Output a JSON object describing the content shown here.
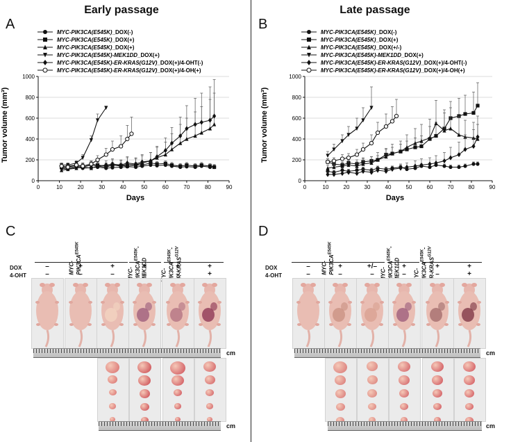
{
  "panels": {
    "left_title": "Early passage",
    "right_title": "Late passage",
    "letters": {
      "a": "A",
      "b": "B",
      "c": "C",
      "d": "D"
    }
  },
  "legend": [
    {
      "gene": "MYC-PIK3CA(E545K)",
      "suffix": "_DOX(-)",
      "marker": "circle-filled"
    },
    {
      "gene": "MYC-PIK3CA(E545K)",
      "suffix": "_DOX(+)",
      "marker": "square-filled"
    },
    {
      "gene": "MYC-PIK3CA(E545K)",
      "suffix": "_DOX(+)",
      "marker": "triangle-up"
    },
    {
      "gene": "MYC-PIK3CA(E545K)-MEK1DD",
      "suffix": "_DOX(+)",
      "marker": "triangle-down"
    },
    {
      "gene": "MYC-PIK3CA(E545K)-ER-KRAS(G12V)",
      "suffix": "_DOX(+)/4-OHT(-)",
      "marker": "diamond-filled"
    },
    {
      "gene": "MYC-PIK3CA(E545K)-ER-KRAS(G12V)",
      "suffix": "_DOX(+)/4-OH(+)",
      "marker": "circle-open"
    }
  ],
  "legend_late": [
    {
      "gene": "MYC-PIK3CA(E545K)",
      "suffix": "_DOX(-)",
      "marker": "circle-filled"
    },
    {
      "gene": "MYC-PIK3CA(E545K)",
      "suffix": "_DOX(+)",
      "marker": "square-filled"
    },
    {
      "gene": "MYC-PIK3CA(E545K)",
      "suffix": "_DOX(+/-)",
      "marker": "triangle-up"
    },
    {
      "gene": "MYC-PIK3CA(E545K)-MEK1DD",
      "suffix": "_DOX(+)",
      "marker": "triangle-down"
    },
    {
      "gene": "MYC-PIK3CA(E545K)-ER-KRAS(G12V)",
      "suffix": "_DOX(+)/4-OHT(-)",
      "marker": "diamond-filled"
    },
    {
      "gene": "MYC-PIK3CA(E545K)-ER-KRAS(G12V)",
      "suffix": "_DOX(+)/4-OH(+)",
      "marker": "circle-open"
    }
  ],
  "chart_data": [
    {
      "type": "line",
      "title": "Early passage",
      "xlabel": "Days",
      "ylabel": "Tumor volume (mm³)",
      "xlim": [
        0,
        90
      ],
      "ylim": [
        0,
        1000
      ],
      "xticks": [
        0,
        10,
        20,
        30,
        40,
        50,
        60,
        70,
        80,
        90
      ],
      "yticks": [
        0,
        200,
        400,
        600,
        800,
        1000
      ],
      "series": [
        {
          "name": "MYC-PIK3CA(E545K)_DOX(-)",
          "marker": "circle-filled",
          "x": [
            11,
            14,
            18,
            21,
            25,
            28,
            32,
            35,
            39,
            42,
            46,
            49,
            53,
            56,
            60,
            63,
            67,
            70,
            74,
            77,
            81,
            83
          ],
          "y": [
            120,
            110,
            130,
            120,
            125,
            130,
            120,
            125,
            130,
            135,
            130,
            140,
            150,
            145,
            150,
            140,
            130,
            135,
            130,
            140,
            130,
            130
          ],
          "err": [
            20,
            20,
            20,
            20,
            20,
            20,
            20,
            20,
            20,
            20,
            20,
            20,
            20,
            20,
            20,
            20,
            20,
            20,
            20,
            20,
            20,
            20
          ]
        },
        {
          "name": "MYC-PIK3CA(E545K)_DOX(+)",
          "marker": "square-filled",
          "x": [
            11,
            14,
            18,
            21,
            25,
            28,
            32,
            35,
            39,
            42,
            46,
            49,
            53,
            56,
            60,
            63,
            67,
            70,
            74,
            77,
            81,
            83
          ],
          "y": [
            130,
            140,
            150,
            140,
            160,
            150,
            140,
            150,
            145,
            140,
            150,
            150,
            170,
            160,
            165,
            150,
            140,
            150,
            140,
            150,
            140,
            130
          ],
          "err": [
            25,
            25,
            25,
            25,
            25,
            25,
            25,
            25,
            25,
            25,
            25,
            25,
            25,
            25,
            25,
            25,
            25,
            25,
            25,
            25,
            25,
            25
          ]
        },
        {
          "name": "MYC-PIK3CA(E545K)_DOX(+)",
          "marker": "triangle-up",
          "x": [
            11,
            14,
            18,
            21,
            25,
            28,
            32,
            35,
            39,
            42,
            46,
            49,
            53,
            56,
            60,
            63,
            67,
            70,
            74,
            77,
            81,
            83
          ],
          "y": [
            100,
            110,
            120,
            130,
            120,
            140,
            130,
            150,
            140,
            160,
            150,
            170,
            190,
            220,
            250,
            300,
            360,
            400,
            430,
            460,
            500,
            540
          ],
          "err": [
            30,
            30,
            30,
            40,
            40,
            40,
            40,
            50,
            50,
            60,
            60,
            70,
            80,
            100,
            120,
            150,
            180,
            200,
            230,
            250,
            280,
            300
          ]
        },
        {
          "name": "MYC-PIK3CA(E545K)-MEK1DD_DOX(+)",
          "marker": "triangle-down",
          "x": [
            11,
            14,
            18,
            21,
            25,
            28,
            32
          ],
          "y": [
            150,
            150,
            170,
            220,
            390,
            580,
            700
          ],
          "err": [
            20,
            20,
            20,
            30,
            40,
            60,
            0
          ]
        },
        {
          "name": "MYC-PIK3CA(E545K)-ER-KRAS(G12V)_DOX(+)/4-OHT(-)",
          "marker": "diamond-filled",
          "x": [
            11,
            14,
            18,
            21,
            25,
            28,
            32,
            35,
            39,
            42,
            46,
            49,
            53,
            56,
            60,
            63,
            67,
            70,
            74,
            77,
            81,
            83
          ],
          "y": [
            130,
            120,
            140,
            130,
            150,
            140,
            150,
            160,
            150,
            170,
            160,
            180,
            190,
            230,
            290,
            360,
            430,
            500,
            540,
            560,
            580,
            620
          ],
          "err": [
            30,
            30,
            30,
            40,
            40,
            40,
            40,
            50,
            50,
            60,
            60,
            70,
            80,
            100,
            120,
            150,
            180,
            220,
            250,
            280,
            320,
            350
          ]
        },
        {
          "name": "MYC-PIK3CA(E545K)-ER-KRAS(G12V)_DOX(+)/4-OH(+)",
          "marker": "circle-open",
          "x": [
            11,
            14,
            18,
            21,
            25,
            28,
            32,
            35,
            39,
            42,
            44
          ],
          "y": [
            140,
            130,
            150,
            140,
            160,
            200,
            250,
            300,
            330,
            400,
            450
          ],
          "err": [
            20,
            20,
            20,
            20,
            30,
            40,
            60,
            80,
            100,
            130,
            160
          ]
        }
      ]
    },
    {
      "type": "line",
      "title": "Late passage",
      "xlabel": "Days",
      "ylabel": "Tumor volume (mm³)",
      "xlim": [
        0,
        90
      ],
      "ylim": [
        0,
        1000
      ],
      "xticks": [
        0,
        10,
        20,
        30,
        40,
        50,
        60,
        70,
        80,
        90
      ],
      "yticks": [
        0,
        200,
        400,
        600,
        800,
        1000
      ],
      "series": [
        {
          "name": "MYC-PIK3CA(E545K)_DOX(-)",
          "marker": "circle-filled",
          "x": [
            11,
            14,
            18,
            21,
            25,
            28,
            32,
            35,
            39,
            42,
            46,
            49,
            53,
            56,
            60,
            63,
            67,
            70,
            74,
            77,
            81,
            83
          ],
          "y": [
            90,
            80,
            100,
            90,
            100,
            110,
            100,
            120,
            110,
            120,
            130,
            110,
            120,
            140,
            130,
            150,
            140,
            130,
            130,
            140,
            160,
            160
          ],
          "err": [
            20,
            20,
            20,
            20,
            20,
            20,
            20,
            20,
            20,
            20,
            20,
            20,
            20,
            20,
            20,
            20,
            20,
            20,
            20,
            20,
            20,
            20
          ]
        },
        {
          "name": "MYC-PIK3CA(E545K)_DOX(+)",
          "marker": "square-filled",
          "x": [
            11,
            14,
            18,
            21,
            25,
            28,
            32,
            35,
            39,
            42,
            46,
            49,
            53,
            56,
            60,
            63,
            67,
            70,
            74,
            77,
            81,
            83
          ],
          "y": [
            180,
            160,
            150,
            170,
            160,
            180,
            190,
            200,
            250,
            260,
            280,
            300,
            320,
            330,
            400,
            430,
            500,
            600,
            620,
            640,
            650,
            720
          ],
          "err": [
            30,
            30,
            30,
            30,
            40,
            40,
            40,
            40,
            50,
            60,
            70,
            80,
            90,
            100,
            120,
            130,
            150,
            160,
            170,
            180,
            200,
            220
          ]
        },
        {
          "name": "MYC-PIK3CA(E545K)_DOX(+/-)",
          "marker": "triangle-up",
          "x": [
            11,
            14,
            18,
            21,
            25,
            28,
            32,
            35,
            39,
            42,
            46,
            49,
            53,
            56,
            60,
            63,
            67,
            70,
            74,
            77,
            81,
            83
          ],
          "y": [
            120,
            130,
            140,
            150,
            140,
            160,
            170,
            200,
            230,
            260,
            280,
            320,
            360,
            380,
            410,
            550,
            480,
            500,
            440,
            420,
            410,
            400
          ],
          "err": [
            30,
            30,
            30,
            40,
            40,
            50,
            60,
            70,
            80,
            90,
            100,
            120,
            140,
            160,
            180,
            220,
            200,
            200,
            180,
            160,
            150,
            140
          ]
        },
        {
          "name": "MYC-PIK3CA(E545K)-MEK1DD_DOX(+)",
          "marker": "triangle-down",
          "x": [
            11,
            14,
            18,
            21,
            25,
            28,
            32
          ],
          "y": [
            240,
            300,
            380,
            440,
            500,
            580,
            700
          ],
          "err": [
            40,
            50,
            60,
            80,
            100,
            120,
            200
          ]
        },
        {
          "name": "MYC-PIK3CA(E545K)-ER-KRAS(G12V)_DOX(+)/4-OHT(-)",
          "marker": "diamond-filled",
          "x": [
            11,
            14,
            18,
            21,
            25,
            28,
            32,
            35,
            39,
            42,
            46,
            49,
            53,
            56,
            60,
            63,
            67,
            70,
            74,
            77,
            81,
            83
          ],
          "y": [
            60,
            60,
            70,
            80,
            70,
            90,
            80,
            100,
            90,
            110,
            120,
            130,
            140,
            150,
            160,
            170,
            190,
            220,
            250,
            300,
            330,
            420
          ],
          "err": [
            20,
            20,
            20,
            20,
            20,
            20,
            20,
            30,
            30,
            30,
            40,
            40,
            50,
            60,
            60,
            70,
            80,
            100,
            120,
            140,
            160,
            200
          ]
        },
        {
          "name": "MYC-PIK3CA(E545K)-ER-KRAS(G12V)_DOX(+)/4-OH(+)",
          "marker": "circle-open",
          "x": [
            11,
            14,
            18,
            21,
            25,
            28,
            32,
            35,
            39,
            42,
            44
          ],
          "y": [
            180,
            190,
            210,
            220,
            250,
            300,
            360,
            460,
            520,
            570,
            620
          ],
          "err": [
            30,
            30,
            40,
            40,
            50,
            60,
            80,
            100,
            120,
            140,
            160
          ]
        }
      ]
    }
  ],
  "panel_c": {
    "row_labels": {
      "dox": "DOX",
      "oht": "4-OHT"
    },
    "groups": [
      "MYC-PIK3CA",
      "MYC-PIK3CA-MEK1DD",
      "MYC-PIK3CA-ER-KRAS"
    ],
    "dox": [
      "–",
      "+",
      "+",
      "+",
      "+",
      "+"
    ],
    "oht": [
      "–",
      "–",
      "–",
      "–",
      "–",
      "+"
    ],
    "unit": "cm"
  },
  "panel_d": {
    "row_labels": {
      "dox": "DOX",
      "oht": "4-OHT"
    },
    "groups": [
      "MYC-PIK3CA",
      "MYC-PIK3CA-MEK1DD",
      "MYC-PIK3CA-ER-KRAS"
    ],
    "dox": [
      "–",
      "+",
      "+/–",
      "+",
      "+",
      "+"
    ],
    "oht": [
      "–",
      "–",
      "–",
      "–",
      "–",
      "+"
    ],
    "unit": "cm"
  }
}
